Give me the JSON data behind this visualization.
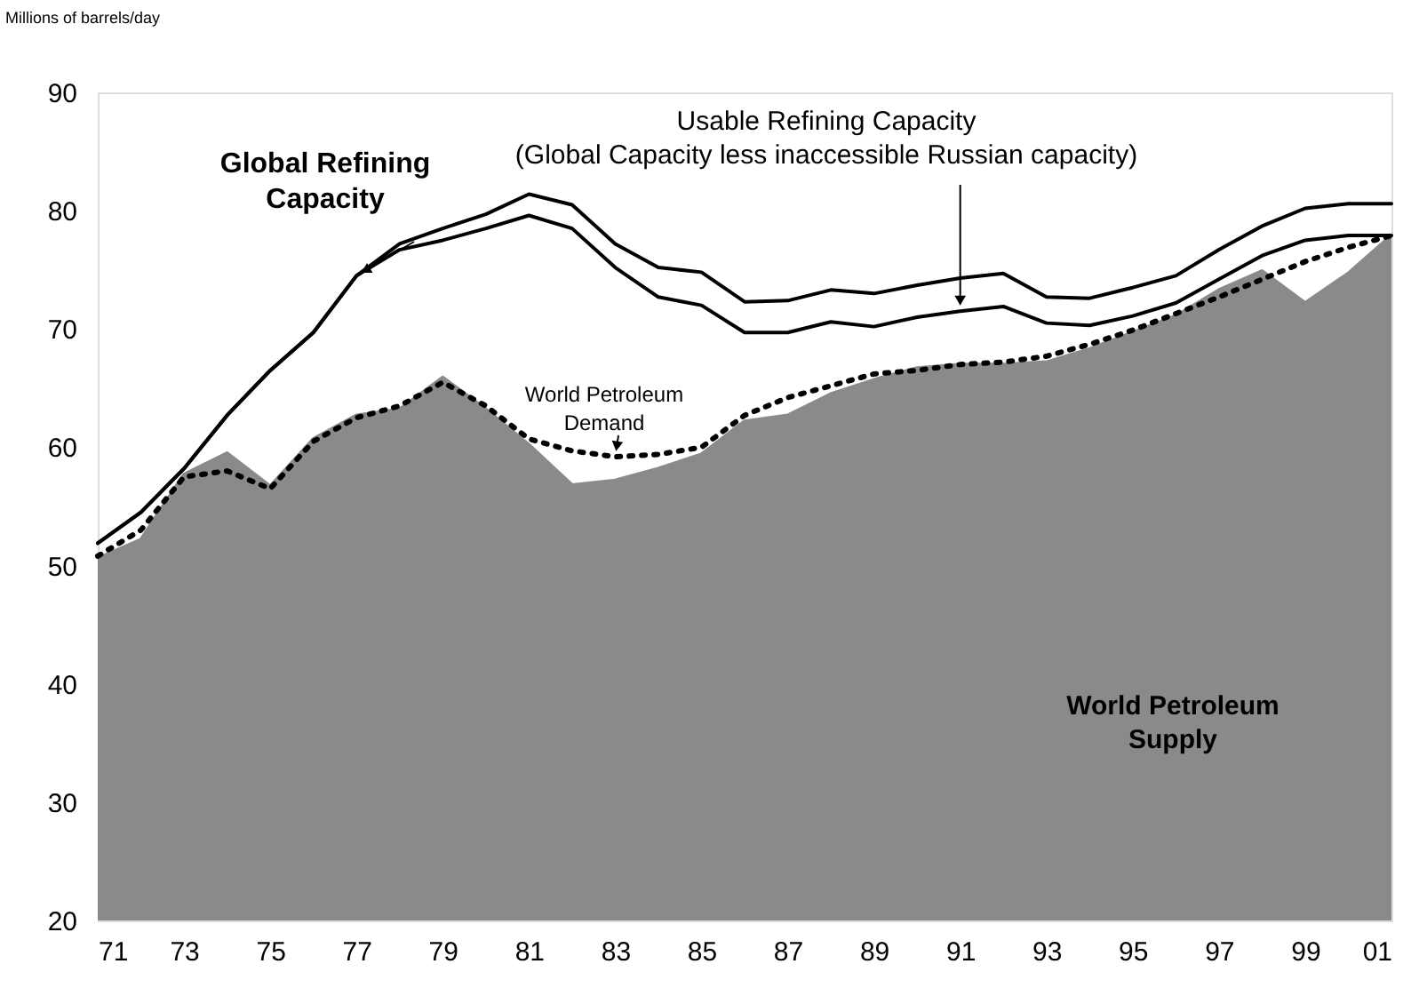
{
  "chart_data": {
    "type": "line",
    "ylabel": "Millions of barrels/day",
    "x": [
      1971,
      1972,
      1973,
      1974,
      1975,
      1976,
      1977,
      1978,
      1979,
      1980,
      1981,
      1982,
      1983,
      1984,
      1985,
      1986,
      1987,
      1988,
      1989,
      1990,
      1991,
      1992,
      1993,
      1994,
      1995,
      1996,
      1997,
      1998,
      1999,
      2000,
      2001
    ],
    "series": [
      {
        "name": "World Petroleum\nSupply",
        "type": "area",
        "color": "#8a8a8a",
        "values": [
          50.6,
          52.2,
          57.7,
          59.5,
          56.7,
          60.7,
          62.7,
          63.2,
          65.9,
          63.2,
          60.2,
          56.8,
          57.2,
          58.2,
          59.4,
          62.2,
          62.7,
          64.5,
          65.7,
          66.7,
          67.0,
          67.0,
          67.2,
          68.3,
          69.7,
          71.1,
          73.3,
          74.9,
          72.2,
          74.7,
          77.9
        ]
      },
      {
        "name": "World Petroleum\nDemand",
        "line_style": "dotted",
        "color": "#000000",
        "values": [
          50.8,
          53.0,
          57.5,
          58.0,
          56.5,
          60.5,
          62.5,
          63.5,
          65.5,
          63.5,
          60.7,
          59.7,
          59.2,
          59.4,
          60.0,
          62.7,
          64.2,
          65.2,
          66.2,
          66.5,
          67.0,
          67.2,
          67.7,
          68.7,
          69.9,
          71.3,
          72.7,
          74.2,
          75.7,
          76.9,
          77.9
        ]
      },
      {
        "name": "Global Refining\nCapacity",
        "line_style": "solid",
        "color": "#000000",
        "values": [
          51.9,
          54.5,
          58.2,
          62.7,
          66.5,
          69.7,
          74.5,
          77.2,
          78.5,
          79.7,
          81.4,
          80.5,
          77.2,
          75.2,
          74.8,
          72.3,
          72.4,
          73.3,
          73.0,
          73.7,
          74.3,
          74.7,
          72.7,
          72.6,
          73.5,
          74.5,
          76.7,
          78.7,
          80.2,
          80.6,
          80.6
        ]
      },
      {
        "name": "Usable Refining Capacity\n(Global Capacity less inaccessible Russian capacity)",
        "line_style": "solid",
        "color": "#000000",
        "values": [
          51.9,
          54.5,
          58.2,
          62.7,
          66.5,
          69.7,
          74.5,
          76.7,
          77.5,
          78.5,
          79.6,
          78.5,
          75.2,
          72.7,
          72.0,
          69.7,
          69.7,
          70.6,
          70.2,
          71.0,
          71.5,
          71.9,
          70.5,
          70.3,
          71.1,
          72.2,
          74.2,
          76.2,
          77.5,
          77.9,
          77.9
        ]
      }
    ],
    "xlim": [
      1971,
      2001
    ],
    "xticks": [
      {
        "value": 1971,
        "label": "71"
      },
      {
        "value": 1973,
        "label": "73"
      },
      {
        "value": 1975,
        "label": "75"
      },
      {
        "value": 1977,
        "label": "77"
      },
      {
        "value": 1979,
        "label": "79"
      },
      {
        "value": 1981,
        "label": "81"
      },
      {
        "value": 1983,
        "label": "83"
      },
      {
        "value": 1985,
        "label": "85"
      },
      {
        "value": 1987,
        "label": "87"
      },
      {
        "value": 1989,
        "label": "89"
      },
      {
        "value": 1991,
        "label": "91"
      },
      {
        "value": 1993,
        "label": "93"
      },
      {
        "value": 1995,
        "label": "95"
      },
      {
        "value": 1997,
        "label": "97"
      },
      {
        "value": 1999,
        "label": "99"
      },
      {
        "value": 2001,
        "label": "01"
      }
    ],
    "ylim": [
      20,
      90
    ],
    "yticks": [
      20,
      30,
      40,
      50,
      60,
      70,
      80,
      90
    ],
    "grid": false,
    "marker": "none"
  }
}
